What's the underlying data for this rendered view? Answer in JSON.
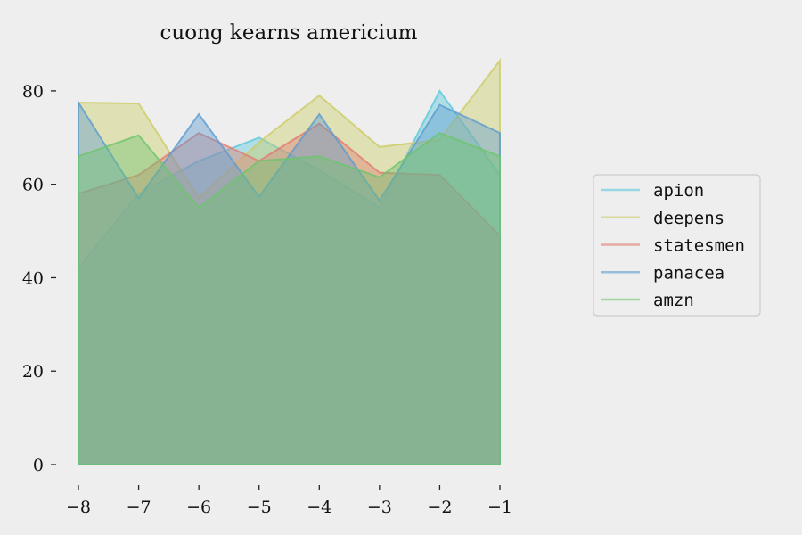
{
  "chart_data": {
    "type": "area",
    "title": "cuong kearns americium",
    "xlabel": "",
    "ylabel": "",
    "x": [
      -8,
      -7,
      -6,
      -5,
      -4,
      -3,
      -2,
      -1
    ],
    "xlim": [
      -8,
      -1
    ],
    "ylim": [
      0,
      88
    ],
    "x_ticks": [
      -8,
      -7,
      -6,
      -5,
      -4,
      -3,
      -2,
      -1
    ],
    "x_tick_labels": [
      "−8",
      "−7",
      "−6",
      "−5",
      "−4",
      "−3",
      "−2",
      "−1"
    ],
    "y_ticks": [
      0,
      20,
      40,
      60,
      80
    ],
    "y_tick_labels": [
      "0",
      "20",
      "40",
      "60",
      "80"
    ],
    "grid": false,
    "legend_position": "right",
    "series": [
      {
        "name": "apion",
        "color": "#5bc8dc",
        "values": [
          42,
          58,
          65,
          70,
          63,
          55,
          80,
          62
        ]
      },
      {
        "name": "deepens",
        "color": "#cccc66",
        "values": [
          77.5,
          77.3,
          57,
          69,
          79,
          68,
          69.5,
          86.5
        ]
      },
      {
        "name": "statesmen",
        "color": "#e07d72",
        "values": [
          58,
          62,
          71,
          65,
          73,
          62.5,
          62,
          49
        ]
      },
      {
        "name": "panacea",
        "color": "#5b9ccf",
        "values": [
          77.5,
          57,
          75,
          57.3,
          75,
          56.5,
          77,
          71
        ]
      },
      {
        "name": "amzn",
        "color": "#6ec46e",
        "values": [
          66,
          70.5,
          55,
          65,
          66,
          61.5,
          71,
          66
        ]
      }
    ]
  }
}
